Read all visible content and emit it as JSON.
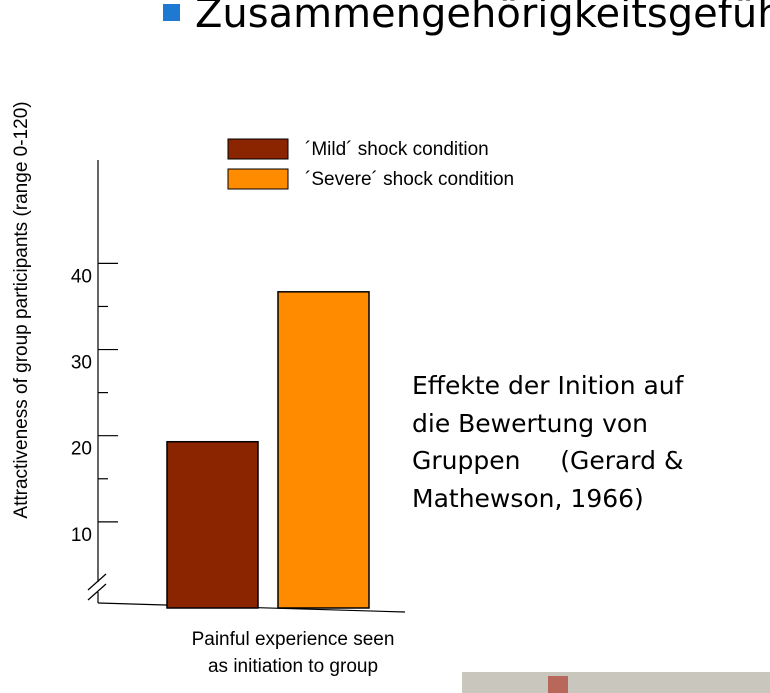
{
  "slide_title": "Zusammengehörigkeitsgefühl",
  "caption_lines": [
    "Effekte der Inition auf",
    "die Bewertung von",
    "Gruppen     (Gerard &",
    "Mathewson, 1966)"
  ],
  "chart_data": {
    "type": "bar",
    "y_label": "Attractiveness of group participants (range 0-120)",
    "x_label_lines": [
      "Painful experience seen",
      "as initiation to group"
    ],
    "categories": [
      null
    ],
    "series": [
      {
        "name": "´Mild´ shock condition",
        "color": "#8b2500",
        "values": [
          19.3
        ]
      },
      {
        "name": "´Severe´ shock condition",
        "color": "#ff8c00",
        "values": [
          36.7
        ]
      }
    ],
    "ylim": [
      0,
      52
    ],
    "yticks": [
      10,
      20,
      30,
      40
    ],
    "minor_yticks": [
      15,
      25,
      35
    ],
    "axis_break": true,
    "grid": false,
    "legend": "top"
  }
}
